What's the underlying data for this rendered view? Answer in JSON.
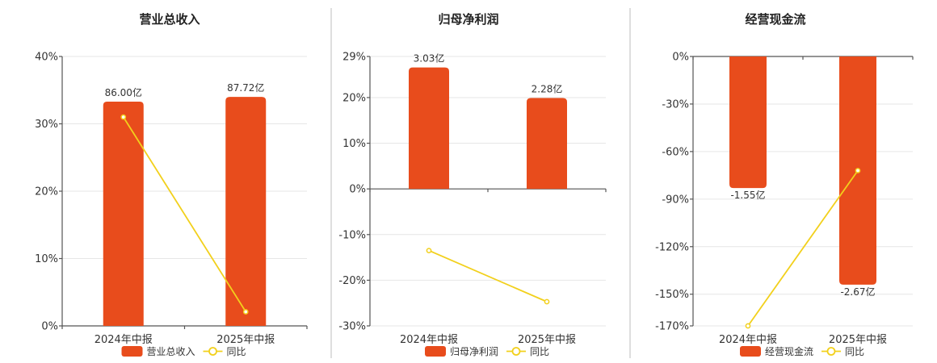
{
  "colors": {
    "bar": "#E84C1C",
    "line": "#F2D01C",
    "marker_fill": "#FFFFFF"
  },
  "legend_line_label": "同比",
  "chart_data": [
    {
      "type": "bar",
      "title": "营业总收入",
      "categories": [
        "2024年中报",
        "2025年中报"
      ],
      "series": [
        {
          "name": "营业总收入",
          "kind": "bar",
          "values": [
            33.3,
            34.0
          ],
          "labels": [
            "86.00亿",
            "87.72亿"
          ]
        },
        {
          "name": "同比",
          "kind": "line",
          "values": [
            31.0,
            2.1
          ]
        }
      ],
      "ylim": [
        0,
        40
      ],
      "yticks": [
        0,
        10,
        20,
        30,
        40
      ],
      "ytick_labels": [
        "0%",
        "10%",
        "20%",
        "30%",
        "40%"
      ],
      "grid": true,
      "legend": "bottom"
    },
    {
      "type": "bar",
      "title": "归母净利润",
      "categories": [
        "2024年中报",
        "2025年中报"
      ],
      "series": [
        {
          "name": "归母净利润",
          "kind": "bar",
          "values": [
            26.6,
            19.9
          ],
          "labels": [
            "3.03亿",
            "2.28亿"
          ]
        },
        {
          "name": "同比",
          "kind": "line",
          "values": [
            -13.5,
            -24.7
          ]
        }
      ],
      "ylim": [
        -30,
        29
      ],
      "yticks": [
        -30,
        -20,
        -10,
        0,
        10,
        20,
        29
      ],
      "ytick_labels": [
        "-30%",
        "-20%",
        "-10%",
        "0%",
        "10%",
        "20%",
        "29%"
      ],
      "grid": true,
      "legend": "bottom"
    },
    {
      "type": "bar",
      "title": "经营现金流",
      "categories": [
        "2024年中报",
        "2025年中报"
      ],
      "series": [
        {
          "name": "经营现金流",
          "kind": "bar",
          "values": [
            -83,
            -144
          ],
          "labels": [
            "-1.55亿",
            "-2.67亿"
          ]
        },
        {
          "name": "同比",
          "kind": "line",
          "values": [
            -170,
            -72
          ]
        }
      ],
      "ylim": [
        -170,
        0
      ],
      "yticks": [
        -170,
        -150,
        -120,
        -90,
        -60,
        -30,
        0
      ],
      "ytick_labels": [
        "-170%",
        "-150%",
        "-120%",
        "-90%",
        "-60%",
        "-30%",
        "0%"
      ],
      "grid": true,
      "legend": "bottom"
    }
  ]
}
